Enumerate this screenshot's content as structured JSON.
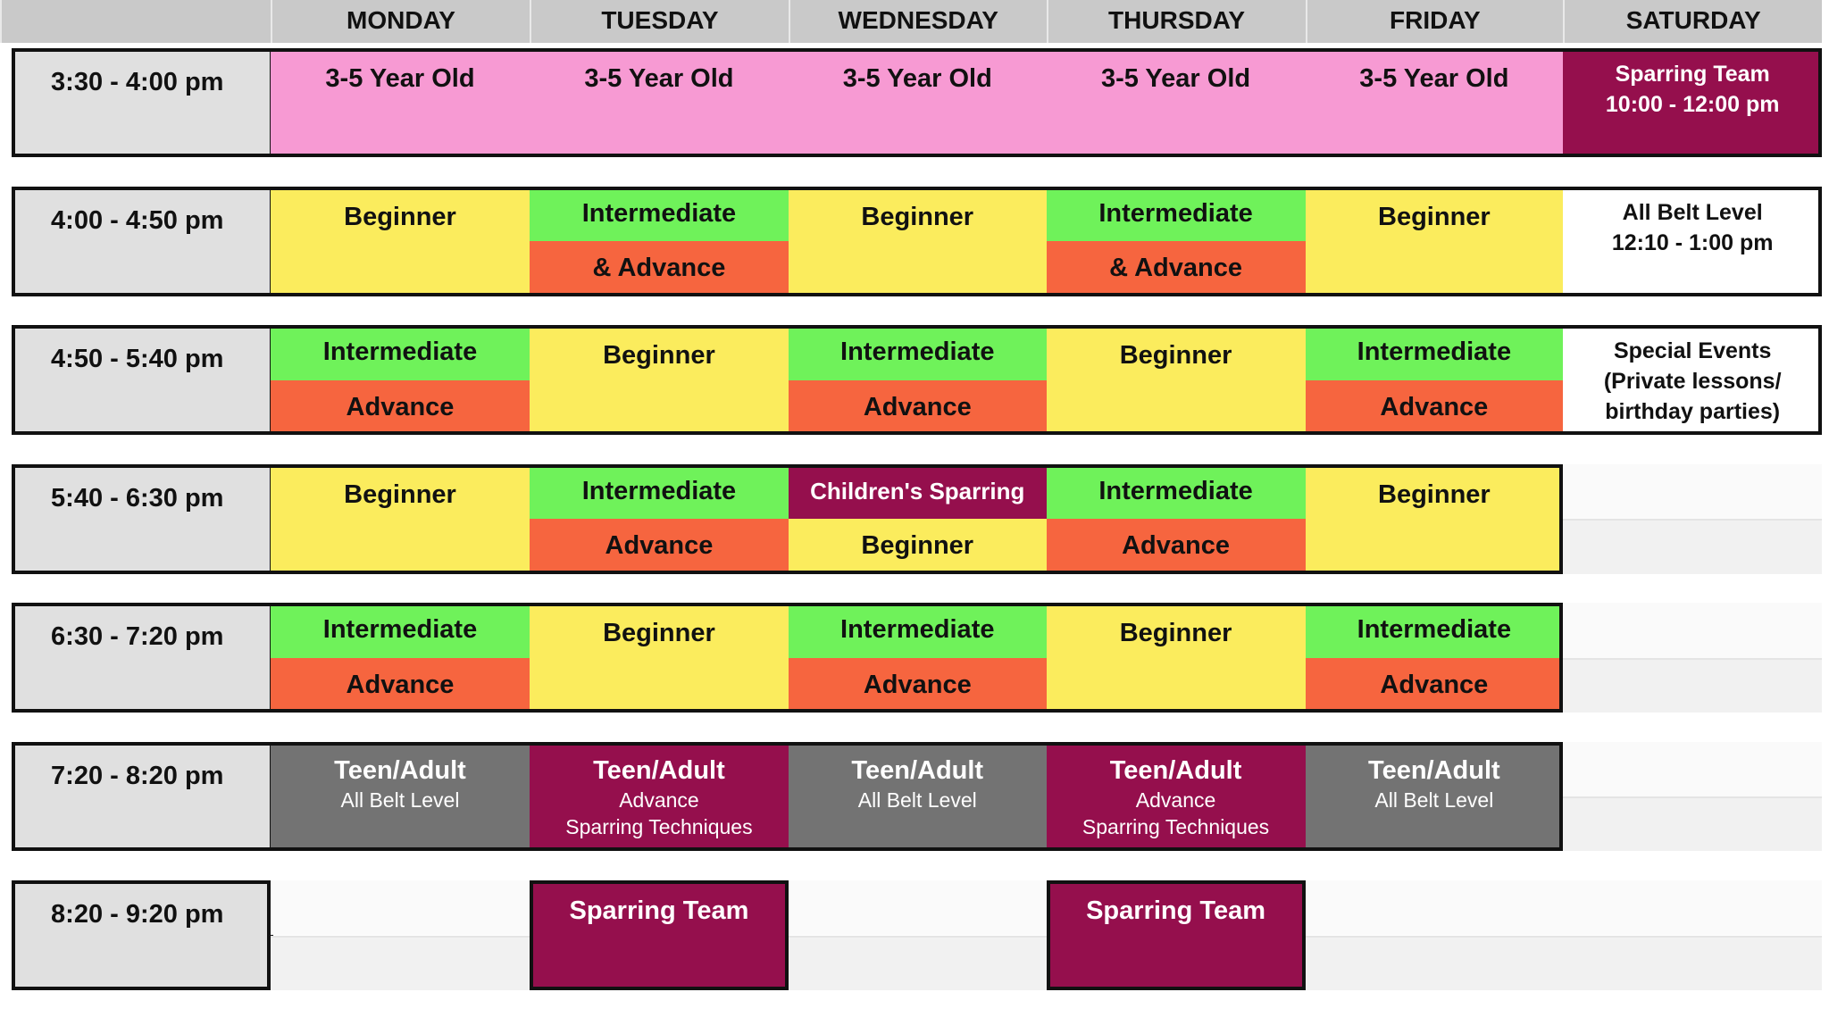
{
  "days": [
    "MONDAY",
    "TUESDAY",
    "WEDNESDAY",
    "THURSDAY",
    "FRIDAY",
    "SATURDAY"
  ],
  "times": [
    "3:30 - 4:00 pm",
    "4:00 - 4:50 pm",
    "4:50 - 5:40 pm",
    "5:40 - 6:30 pm",
    "6:30 - 7:20 pm",
    "7:20 - 8:20 pm",
    "8:20 - 9:20 pm"
  ],
  "colors": {
    "pink": "#f79ad3",
    "yellow": "#fbec5d",
    "green": "#6ff25a",
    "red": "#f6653f",
    "plum": "#950f4d",
    "grey": "#737373",
    "time_bg": "#e0e0e0",
    "header_bg": "#c9c9c9"
  },
  "rows": [
    [
      {
        "type": "single",
        "style": "pink",
        "lines": [
          "3-5 Year Old"
        ]
      },
      {
        "type": "single",
        "style": "pink",
        "lines": [
          "3-5 Year Old"
        ]
      },
      {
        "type": "single",
        "style": "pink",
        "lines": [
          "3-5 Year Old"
        ]
      },
      {
        "type": "single",
        "style": "pink",
        "lines": [
          "3-5 Year Old"
        ]
      },
      {
        "type": "single",
        "style": "pink",
        "lines": [
          "3-5 Year Old"
        ]
      },
      {
        "type": "single",
        "style": "plum",
        "lines": [
          "Sparring Team",
          "10:00 - 12:00 pm"
        ],
        "small": true
      }
    ],
    [
      {
        "type": "single",
        "style": "yellow",
        "lines": [
          "Beginner"
        ]
      },
      {
        "type": "split",
        "top": {
          "style": "green",
          "text": "Intermediate"
        },
        "bottom": {
          "style": "red",
          "text": "& Advance"
        }
      },
      {
        "type": "single",
        "style": "yellow",
        "lines": [
          "Beginner"
        ]
      },
      {
        "type": "split",
        "top": {
          "style": "green",
          "text": "Intermediate"
        },
        "bottom": {
          "style": "red",
          "text": "& Advance"
        }
      },
      {
        "type": "single",
        "style": "yellow",
        "lines": [
          "Beginner"
        ]
      },
      {
        "type": "single",
        "style": "white",
        "lines": [
          "All Belt Level",
          "12:10 - 1:00 pm"
        ],
        "small": true
      }
    ],
    [
      {
        "type": "split",
        "top": {
          "style": "green",
          "text": "Intermediate"
        },
        "bottom": {
          "style": "red",
          "text": "Advance"
        }
      },
      {
        "type": "single",
        "style": "yellow",
        "lines": [
          "Beginner"
        ]
      },
      {
        "type": "split",
        "top": {
          "style": "green",
          "text": "Intermediate"
        },
        "bottom": {
          "style": "red",
          "text": "Advance"
        }
      },
      {
        "type": "single",
        "style": "yellow",
        "lines": [
          "Beginner"
        ]
      },
      {
        "type": "split",
        "top": {
          "style": "green",
          "text": "Intermediate"
        },
        "bottom": {
          "style": "red",
          "text": "Advance"
        }
      },
      {
        "type": "single",
        "style": "white",
        "lines": [
          "Special Events",
          "(Private lessons/",
          "birthday parties)"
        ],
        "small": true
      }
    ],
    [
      {
        "type": "single",
        "style": "yellow",
        "lines": [
          "Beginner"
        ]
      },
      {
        "type": "split",
        "top": {
          "style": "green",
          "text": "Intermediate"
        },
        "bottom": {
          "style": "red",
          "text": "Advance"
        }
      },
      {
        "type": "split",
        "top": {
          "style": "plum",
          "text": "Children's Sparring"
        },
        "bottom": {
          "style": "yellow",
          "text": "Beginner"
        }
      },
      {
        "type": "split",
        "top": {
          "style": "green",
          "text": "Intermediate"
        },
        "bottom": {
          "style": "red",
          "text": "Advance"
        }
      },
      {
        "type": "single",
        "style": "yellow",
        "lines": [
          "Beginner"
        ]
      },
      {
        "type": "empty"
      }
    ],
    [
      {
        "type": "split",
        "top": {
          "style": "green",
          "text": "Intermediate"
        },
        "bottom": {
          "style": "red",
          "text": "Advance"
        }
      },
      {
        "type": "single",
        "style": "yellow",
        "lines": [
          "Beginner"
        ]
      },
      {
        "type": "split",
        "top": {
          "style": "green",
          "text": "Intermediate"
        },
        "bottom": {
          "style": "red",
          "text": "Advance"
        }
      },
      {
        "type": "single",
        "style": "yellow",
        "lines": [
          "Beginner"
        ]
      },
      {
        "type": "split",
        "top": {
          "style": "green",
          "text": "Intermediate"
        },
        "bottom": {
          "style": "red",
          "text": "Advance"
        }
      },
      {
        "type": "empty"
      }
    ],
    [
      {
        "type": "single",
        "style": "grey",
        "lines": [
          "Teen/Adult",
          "All Belt Level"
        ],
        "sub": true
      },
      {
        "type": "single",
        "style": "plum",
        "lines": [
          "Teen/Adult",
          "Advance",
          "Sparring Techniques"
        ],
        "sub": true
      },
      {
        "type": "single",
        "style": "grey",
        "lines": [
          "Teen/Adult",
          "All Belt Level"
        ],
        "sub": true
      },
      {
        "type": "single",
        "style": "plum",
        "lines": [
          "Teen/Adult",
          "Advance",
          "Sparring Techniques"
        ],
        "sub": true
      },
      {
        "type": "single",
        "style": "grey",
        "lines": [
          "Teen/Adult",
          "All Belt Level"
        ],
        "sub": true
      },
      {
        "type": "empty"
      }
    ],
    [
      {
        "type": "empty"
      },
      {
        "type": "single",
        "style": "plum",
        "lines": [
          "Sparring Team"
        ],
        "boxed": true
      },
      {
        "type": "empty"
      },
      {
        "type": "single",
        "style": "plum",
        "lines": [
          "Sparring Team"
        ],
        "boxed": true
      },
      {
        "type": "empty"
      },
      {
        "type": "empty"
      }
    ]
  ]
}
